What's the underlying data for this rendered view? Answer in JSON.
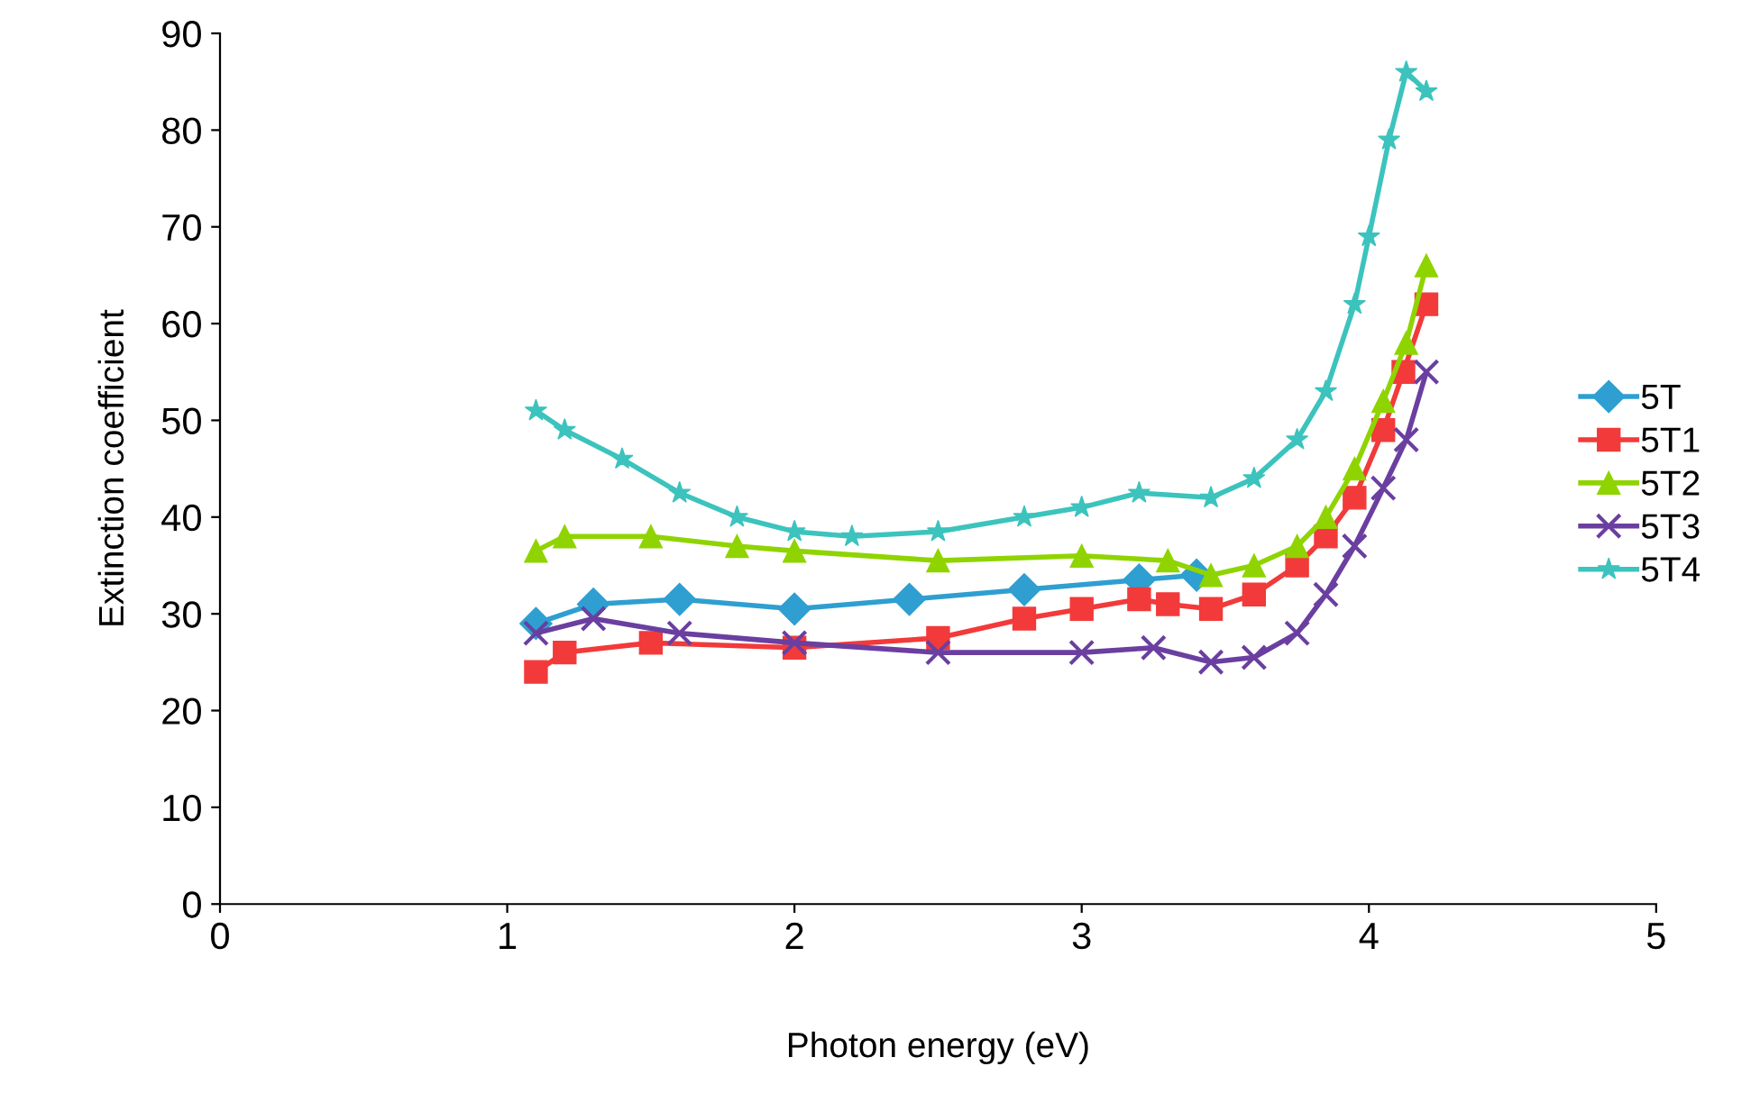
{
  "chart_data": {
    "type": "line",
    "xlabel": "Photon energy (eV)",
    "ylabel": "Extinction coefficient",
    "xlim": [
      0,
      5
    ],
    "xticks": [
      0,
      1,
      2,
      3,
      4,
      5
    ],
    "ylim": [
      0,
      90
    ],
    "yticks": [
      0,
      10,
      20,
      30,
      40,
      50,
      60,
      70,
      80,
      90
    ],
    "grid": false,
    "legend": "right",
    "series": [
      {
        "name": "5T",
        "color": "#2e9fd0",
        "marker": "diamond",
        "x": [
          1.1,
          1.3,
          1.6,
          2.0,
          2.4,
          2.8,
          3.2,
          3.4
        ],
        "values": [
          29,
          31,
          31.5,
          30.5,
          31.5,
          32.5,
          33.5,
          34
        ]
      },
      {
        "name": "5T1",
        "color": "#f23a3a",
        "marker": "square",
        "x": [
          1.1,
          1.2,
          1.5,
          2.0,
          2.5,
          2.8,
          3.0,
          3.2,
          3.3,
          3.45,
          3.6,
          3.75,
          3.85,
          3.95,
          4.05,
          4.12,
          4.2
        ],
        "values": [
          24,
          26,
          27,
          26.5,
          27.5,
          29.5,
          30.5,
          31.5,
          31,
          30.5,
          32,
          35,
          38,
          42,
          49,
          55,
          62
        ]
      },
      {
        "name": "5T2",
        "color": "#8fd400",
        "marker": "triangle",
        "x": [
          1.1,
          1.2,
          1.5,
          1.8,
          2.0,
          2.5,
          3.0,
          3.3,
          3.45,
          3.6,
          3.75,
          3.85,
          3.95,
          4.05,
          4.13,
          4.2
        ],
        "values": [
          36.5,
          38,
          38,
          37,
          36.5,
          35.5,
          36,
          35.5,
          34,
          35,
          37,
          40,
          45,
          52,
          58,
          66
        ]
      },
      {
        "name": "5T3",
        "color": "#6a3fa0",
        "marker": "cross",
        "x": [
          1.1,
          1.3,
          1.6,
          2.0,
          2.5,
          3.0,
          3.25,
          3.45,
          3.6,
          3.75,
          3.85,
          3.95,
          4.05,
          4.13,
          4.2
        ],
        "values": [
          28,
          29.5,
          28,
          27,
          26,
          26,
          26.5,
          25,
          25.5,
          28,
          32,
          37,
          43,
          48,
          55
        ]
      },
      {
        "name": "5T4",
        "color": "#3cc3bd",
        "marker": "star",
        "x": [
          1.1,
          1.2,
          1.4,
          1.6,
          1.8,
          2.0,
          2.2,
          2.5,
          2.8,
          3.0,
          3.2,
          3.45,
          3.6,
          3.75,
          3.85,
          3.95,
          4.0,
          4.07,
          4.13,
          4.2
        ],
        "values": [
          51,
          49,
          46,
          42.5,
          40,
          38.5,
          38,
          38.5,
          40,
          41,
          42.5,
          42,
          44,
          48,
          53,
          62,
          69,
          79,
          86,
          84
        ]
      }
    ]
  }
}
